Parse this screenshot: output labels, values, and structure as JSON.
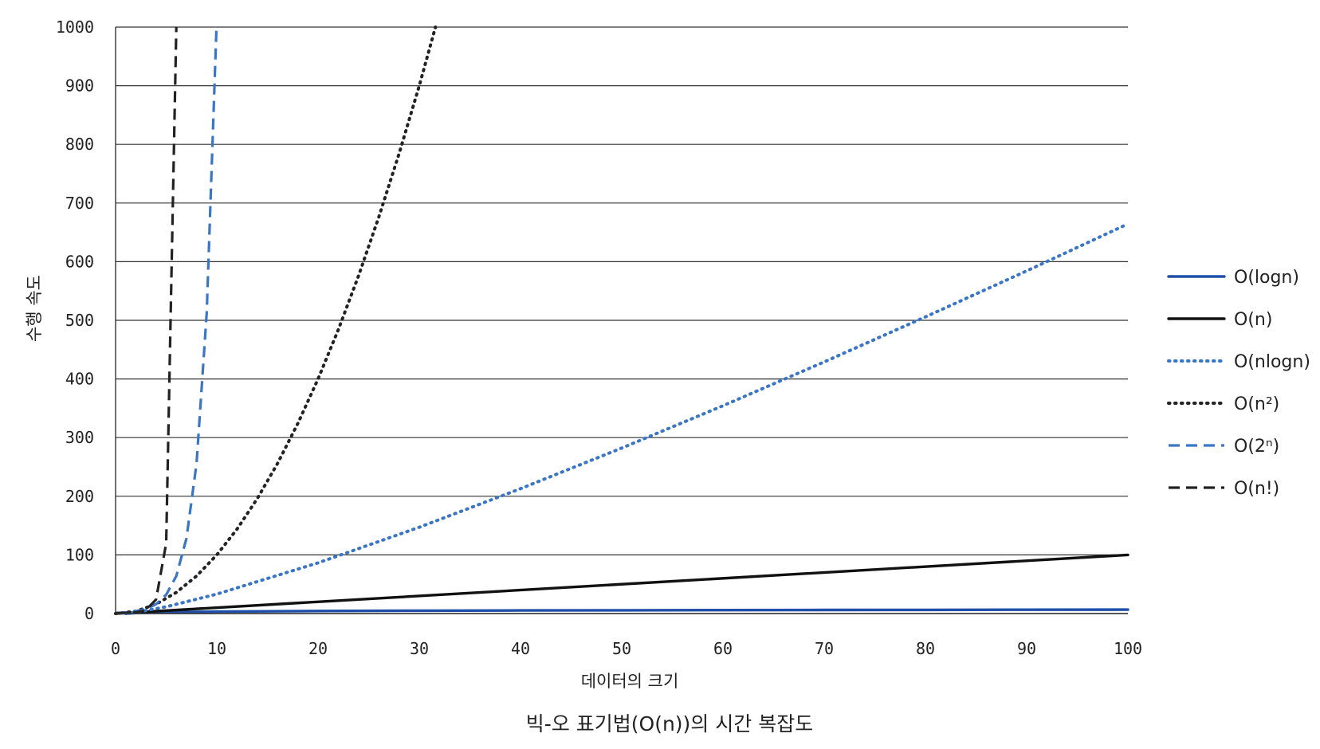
{
  "chart_data": {
    "type": "line",
    "title": "빅-오 표기법(O(n))의 시간 복잡도",
    "xlabel": "데이터의 크기",
    "ylabel": "수행 속도",
    "xlim": [
      0,
      100
    ],
    "ylim": [
      0,
      1000
    ],
    "xticks": [
      0,
      10,
      20,
      30,
      40,
      50,
      60,
      70,
      80,
      90,
      100
    ],
    "yticks": [
      0,
      100,
      200,
      300,
      400,
      500,
      600,
      700,
      800,
      900,
      1000
    ],
    "grid": "horizontal",
    "legend_position": "right",
    "series": [
      {
        "name": "O(logn)",
        "color": "#1f4fa8",
        "dash": "solid",
        "x": [
          1,
          2,
          5,
          10,
          20,
          30,
          40,
          50,
          60,
          70,
          80,
          90,
          100
        ],
        "y": [
          0,
          1,
          2.3,
          3.3,
          4.3,
          4.9,
          5.3,
          5.6,
          5.9,
          6.1,
          6.3,
          6.5,
          6.6
        ]
      },
      {
        "name": "O(n)",
        "color": "#111111",
        "dash": "solid",
        "x": [
          0,
          100
        ],
        "y": [
          0,
          100
        ]
      },
      {
        "name": "O(nlogn)",
        "color": "#3a76c4",
        "dash": "dotted",
        "x": [
          1,
          2,
          5,
          10,
          20,
          30,
          40,
          50,
          60,
          70,
          80,
          90,
          100
        ],
        "y": [
          0,
          2,
          11.6,
          33.2,
          86.4,
          147.2,
          212.9,
          282.2,
          354.4,
          429.1,
          505.8,
          584.2,
          664.4
        ]
      },
      {
        "name": "O(n²)",
        "color": "#222222",
        "dash": "dotted",
        "x": [
          0,
          2,
          4,
          6,
          8,
          10,
          12,
          14,
          16,
          18,
          20,
          22,
          24,
          26,
          28,
          30,
          31.6
        ],
        "y": [
          0,
          4,
          16,
          36,
          64,
          100,
          144,
          196,
          256,
          324,
          400,
          484,
          576,
          676,
          784,
          900,
          1000
        ]
      },
      {
        "name": "O(2ⁿ)",
        "color": "#3a76c4",
        "dash": "dashed",
        "x": [
          0,
          1,
          2,
          3,
          4,
          5,
          6,
          7,
          8,
          9,
          9.97
        ],
        "y": [
          1,
          2,
          4,
          8,
          16,
          32,
          64,
          128,
          256,
          512,
          1000
        ]
      },
      {
        "name": "O(n!)",
        "color": "#222222",
        "dash": "dashed",
        "x": [
          0,
          1,
          2,
          3,
          4,
          5,
          6
        ],
        "y": [
          1,
          1,
          2,
          6,
          24,
          120,
          1000
        ]
      }
    ]
  }
}
